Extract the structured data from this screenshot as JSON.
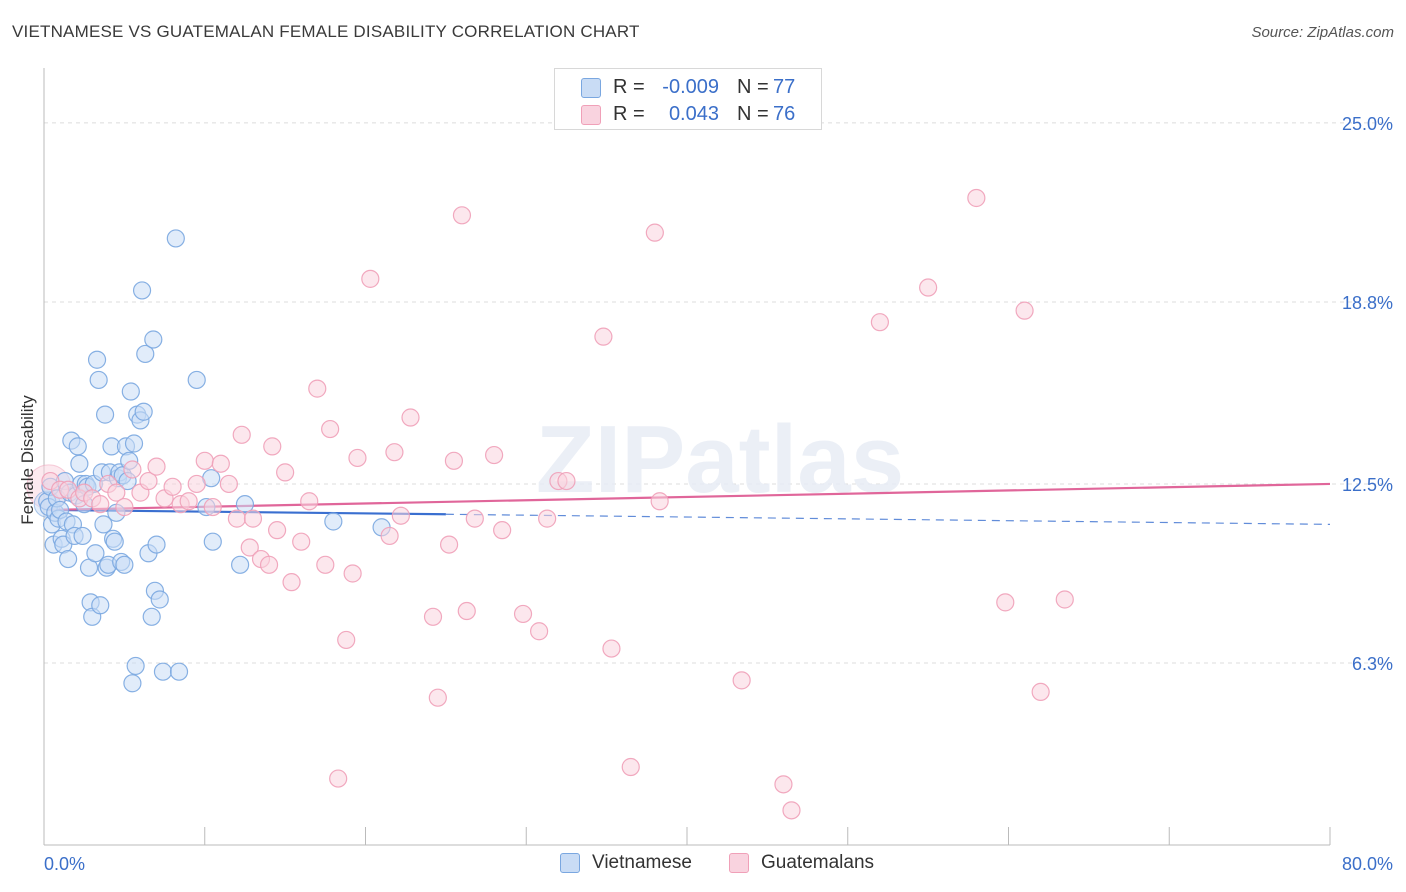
{
  "title": "VIETNAMESE VS GUATEMALAN FEMALE DISABILITY CORRELATION CHART",
  "source": "Source: ZipAtlas.com",
  "watermark": "ZIPatlas",
  "legend": {
    "rows": [
      {
        "r_label": "R =",
        "r_value": "-0.009",
        "n_label": "N =",
        "n_value": "77"
      },
      {
        "r_label": "R =",
        "r_value": "0.043",
        "n_label": "N =",
        "n_value": "76"
      }
    ]
  },
  "colors": {
    "vietnamese": "#7aa7e0",
    "vietnamese_fill": "#c9dcf5",
    "vietnamese_line": "#3a6fd0",
    "guatemalans": "#f0a0b8",
    "guatemalans_fill": "#f9d3df",
    "guatemalans_line": "#e0669a",
    "axis_text": "#3b6fc9"
  },
  "chart_data": {
    "type": "scatter",
    "title": "VIETNAMESE VS GUATEMALAN FEMALE DISABILITY CORRELATION CHART",
    "xlabel": "",
    "ylabel": "Female Disability",
    "xlim": [
      0,
      80
    ],
    "ylim": [
      0,
      26.9
    ],
    "x_tick_labels": [
      "0.0%",
      "80.0%"
    ],
    "y_ticks": [
      6.3,
      12.5,
      18.8,
      25.0
    ],
    "y_tick_labels": [
      "6.3%",
      "12.5%",
      "18.8%",
      "25.0%"
    ],
    "legend_position": "bottom",
    "series": [
      {
        "name": "Vietnamese",
        "trend": {
          "x_start": 0.2,
          "y_start": 11.6,
          "x_solid_end": 25,
          "y_solid_end": 11.45,
          "x_end": 80,
          "y_end": 11.1
        },
        "points": [
          [
            0.2,
            11.9
          ],
          [
            0.3,
            11.7
          ],
          [
            0.4,
            12.4
          ],
          [
            0.5,
            11.1
          ],
          [
            0.6,
            10.4
          ],
          [
            0.7,
            11.5
          ],
          [
            0.8,
            12.0
          ],
          [
            0.9,
            11.3
          ],
          [
            1.0,
            11.6
          ],
          [
            1.1,
            10.6
          ],
          [
            1.2,
            10.4
          ],
          [
            1.3,
            12.6
          ],
          [
            1.4,
            11.2
          ],
          [
            1.5,
            9.9
          ],
          [
            1.6,
            12.2
          ],
          [
            1.7,
            14.0
          ],
          [
            1.8,
            11.1
          ],
          [
            1.9,
            10.7
          ],
          [
            2.0,
            12.1
          ],
          [
            2.1,
            13.8
          ],
          [
            2.2,
            13.2
          ],
          [
            2.3,
            12.5
          ],
          [
            2.4,
            10.7
          ],
          [
            2.5,
            11.8
          ],
          [
            2.6,
            12.5
          ],
          [
            2.7,
            12.4
          ],
          [
            2.8,
            9.6
          ],
          [
            2.9,
            8.4
          ],
          [
            3.0,
            7.9
          ],
          [
            3.1,
            12.5
          ],
          [
            3.2,
            10.1
          ],
          [
            3.3,
            16.8
          ],
          [
            3.4,
            16.1
          ],
          [
            3.5,
            8.3
          ],
          [
            3.6,
            12.9
          ],
          [
            3.7,
            11.1
          ],
          [
            3.8,
            14.9
          ],
          [
            3.9,
            9.6
          ],
          [
            4.0,
            9.7
          ],
          [
            4.1,
            12.9
          ],
          [
            4.2,
            13.8
          ],
          [
            4.3,
            10.6
          ],
          [
            4.4,
            10.5
          ],
          [
            4.5,
            11.5
          ],
          [
            4.6,
            12.7
          ],
          [
            4.7,
            12.9
          ],
          [
            4.8,
            9.8
          ],
          [
            4.9,
            12.8
          ],
          [
            5.0,
            9.7
          ],
          [
            5.1,
            13.8
          ],
          [
            5.2,
            12.6
          ],
          [
            5.3,
            13.3
          ],
          [
            5.4,
            15.7
          ],
          [
            5.5,
            5.6
          ],
          [
            5.6,
            13.9
          ],
          [
            5.7,
            6.2
          ],
          [
            5.8,
            14.9
          ],
          [
            6.0,
            14.7
          ],
          [
            6.1,
            19.2
          ],
          [
            6.2,
            15.0
          ],
          [
            6.3,
            17.0
          ],
          [
            6.5,
            10.1
          ],
          [
            6.7,
            7.9
          ],
          [
            6.8,
            17.5
          ],
          [
            6.9,
            8.8
          ],
          [
            7.0,
            10.4
          ],
          [
            7.2,
            8.5
          ],
          [
            7.4,
            6.0
          ],
          [
            8.2,
            21.0
          ],
          [
            8.4,
            6.0
          ],
          [
            9.5,
            16.1
          ],
          [
            10.1,
            11.7
          ],
          [
            10.4,
            12.7
          ],
          [
            10.5,
            10.5
          ],
          [
            12.2,
            9.7
          ],
          [
            12.5,
            11.8
          ],
          [
            18.0,
            11.2
          ],
          [
            21.0,
            11.0
          ]
        ]
      },
      {
        "name": "Guatemalans",
        "trend": {
          "x_start": 0.2,
          "y_start": 11.6,
          "x_end": 80,
          "y_end": 12.5
        },
        "points": [
          [
            0.4,
            12.6
          ],
          [
            1.0,
            12.3
          ],
          [
            1.5,
            12.3
          ],
          [
            2.2,
            12.0
          ],
          [
            2.5,
            12.2
          ],
          [
            3.0,
            12.0
          ],
          [
            3.5,
            11.8
          ],
          [
            4.0,
            12.5
          ],
          [
            4.5,
            12.2
          ],
          [
            5.0,
            11.7
          ],
          [
            5.5,
            13.0
          ],
          [
            6.0,
            12.2
          ],
          [
            6.5,
            12.6
          ],
          [
            7.0,
            13.1
          ],
          [
            7.5,
            12.0
          ],
          [
            8.0,
            12.4
          ],
          [
            8.5,
            11.8
          ],
          [
            9.0,
            11.9
          ],
          [
            9.5,
            12.5
          ],
          [
            10.0,
            13.3
          ],
          [
            10.5,
            11.7
          ],
          [
            11.0,
            13.2
          ],
          [
            11.5,
            12.5
          ],
          [
            12.0,
            11.3
          ],
          [
            12.3,
            14.2
          ],
          [
            12.8,
            10.3
          ],
          [
            13.0,
            11.3
          ],
          [
            13.5,
            9.9
          ],
          [
            14.0,
            9.7
          ],
          [
            14.2,
            13.8
          ],
          [
            14.5,
            10.9
          ],
          [
            15.0,
            12.9
          ],
          [
            15.4,
            9.1
          ],
          [
            16.0,
            10.5
          ],
          [
            16.5,
            11.9
          ],
          [
            17.0,
            15.8
          ],
          [
            17.5,
            9.7
          ],
          [
            17.8,
            14.4
          ],
          [
            18.3,
            2.3
          ],
          [
            18.8,
            7.1
          ],
          [
            19.2,
            9.4
          ],
          [
            19.5,
            13.4
          ],
          [
            20.3,
            19.6
          ],
          [
            21.5,
            10.7
          ],
          [
            21.8,
            13.6
          ],
          [
            22.2,
            11.4
          ],
          [
            22.8,
            14.8
          ],
          [
            24.2,
            7.9
          ],
          [
            24.5,
            5.1
          ],
          [
            25.2,
            10.4
          ],
          [
            25.5,
            13.3
          ],
          [
            26.0,
            21.8
          ],
          [
            26.3,
            8.1
          ],
          [
            26.8,
            11.3
          ],
          [
            28.0,
            13.5
          ],
          [
            28.5,
            10.9
          ],
          [
            29.8,
            8.0
          ],
          [
            30.8,
            7.4
          ],
          [
            31.3,
            11.3
          ],
          [
            32.0,
            12.6
          ],
          [
            32.5,
            12.6
          ],
          [
            34.8,
            17.6
          ],
          [
            35.3,
            6.8
          ],
          [
            36.5,
            2.7
          ],
          [
            38.0,
            21.2
          ],
          [
            38.3,
            11.9
          ],
          [
            43.4,
            5.7
          ],
          [
            46.0,
            2.1
          ],
          [
            46.5,
            1.2
          ],
          [
            52.0,
            18.1
          ],
          [
            55.0,
            19.3
          ],
          [
            58.0,
            22.4
          ],
          [
            59.8,
            8.4
          ],
          [
            61.0,
            18.5
          ],
          [
            62.0,
            5.3
          ],
          [
            63.5,
            8.5
          ]
        ]
      }
    ]
  }
}
